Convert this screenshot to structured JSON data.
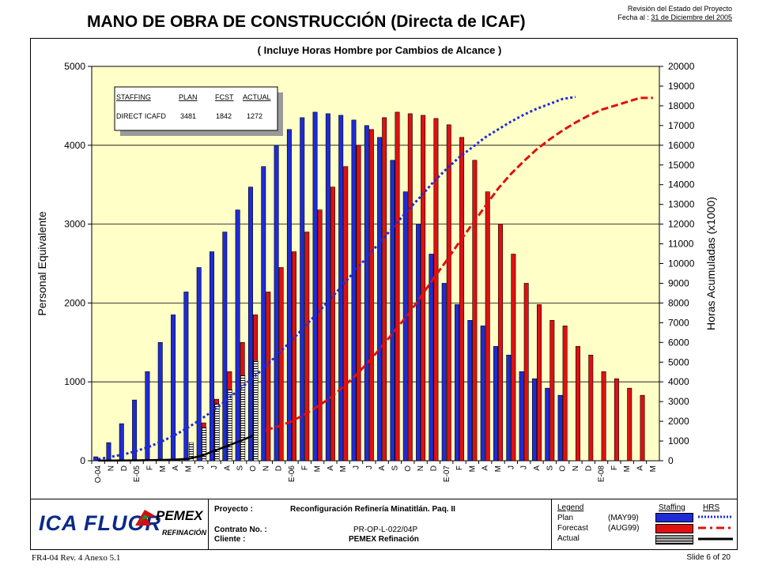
{
  "revision": {
    "line1": "Revisión del Estado del Proyecto",
    "line2_label": "Fecha al :",
    "line2_date": "31 de Diciembre del 2005"
  },
  "footer": {
    "company_logo": "ICA FLUOR",
    "client_logo": "PEMEX",
    "client_logo_sub": "REFINACIÓN",
    "proyecto_label": "Proyecto :",
    "proyecto_value": "Reconfiguración Refinería Minatitlán.  Paq. II",
    "contrato_label": "Contrato No. :",
    "contrato_value": "PR-OP-L-022/04P",
    "cliente_label": "Cliente :",
    "cliente_value": "PEMEX Refinación",
    "legend": {
      "header_legend": "Legend",
      "header_staffing": "Staffing",
      "header_hrs": "HRS",
      "rows": [
        {
          "label": "Plan",
          "code": "(MAY99)",
          "color": "#1f2bd6"
        },
        {
          "label": "Forecast",
          "code": "(AUG99)",
          "color": "#e01010"
        },
        {
          "label": "Actual",
          "code": "",
          "color": "#000000"
        }
      ]
    },
    "form_code": "FR4-04 Rev. 4  Anexo 5.1",
    "slide": "Slide 6 of 20"
  },
  "chart_data": {
    "type": "bar",
    "title": "MANO DE OBRA DE CONSTRUCCIÓN  (Directa de ICAF)",
    "subtitle": "( Incluye Horas Hombre por Cambios de Alcance )",
    "ylabel": "Personal Equivalente",
    "y2label": "Horas Acumuladas (x1000)",
    "ylim": [
      0,
      5000
    ],
    "yticks": [
      0,
      1000,
      2000,
      3000,
      4000,
      5000
    ],
    "y2lim": [
      0,
      20000
    ],
    "y2ticks": [
      0,
      1000,
      2000,
      3000,
      4000,
      5000,
      6000,
      7000,
      8000,
      9000,
      10000,
      11000,
      12000,
      13000,
      14000,
      15000,
      16000,
      17000,
      18000,
      19000,
      20000
    ],
    "categories": [
      "O-04",
      "N",
      "D",
      "E-05",
      "F",
      "M",
      "A",
      "M",
      "J",
      "J",
      "A",
      "S",
      "O",
      "N",
      "D",
      "E-06",
      "F",
      "M",
      "A",
      "M",
      "J",
      "J",
      "A",
      "S",
      "O",
      "N",
      "D",
      "E-07",
      "F",
      "M",
      "A",
      "M",
      "J",
      "J",
      "A",
      "S",
      "O",
      "N",
      "D",
      "E-08",
      "F",
      "M",
      "A",
      "M"
    ],
    "series": [
      {
        "name": "Plan",
        "kind": "bar",
        "color": "#1f2bd6",
        "values": [
          50,
          230,
          470,
          770,
          1130,
          1500,
          1850,
          2140,
          2450,
          2650,
          2900,
          3180,
          3470,
          3730,
          4000,
          4200,
          4350,
          4420,
          4400,
          4380,
          4320,
          4250,
          4100,
          3810,
          3410,
          3000,
          2620,
          2250,
          1980,
          1780,
          1710,
          1450,
          1340,
          1130,
          1040,
          920,
          830,
          null,
          null,
          null,
          null,
          null,
          null,
          null
        ]
      },
      {
        "name": "Forecast",
        "kind": "bar",
        "color": "#e01010",
        "values": [
          null,
          null,
          null,
          null,
          null,
          null,
          null,
          null,
          480,
          780,
          1130,
          1500,
          1850,
          2140,
          2450,
          2650,
          2900,
          3180,
          3470,
          3730,
          4000,
          4200,
          4350,
          4420,
          4400,
          4380,
          4340,
          4260,
          4100,
          3810,
          3410,
          3000,
          2620,
          2250,
          1980,
          1780,
          1710,
          1450,
          1340,
          1130,
          1040,
          920,
          830,
          null
        ]
      },
      {
        "name": "Actual",
        "kind": "bar",
        "color": "#ffffff",
        "pattern": "hatched",
        "values": [
          null,
          null,
          null,
          null,
          null,
          null,
          null,
          230,
          420,
          720,
          900,
          1080,
          1270,
          null,
          null,
          null,
          null,
          null,
          null,
          null,
          null,
          null,
          null,
          null,
          null,
          null,
          null,
          null,
          null,
          null,
          null,
          null,
          null,
          null,
          null,
          null,
          null,
          null,
          null,
          null,
          null,
          null,
          null,
          null
        ]
      },
      {
        "name": "HRS Plan",
        "kind": "line",
        "axis": "y2",
        "style": "dotted",
        "color": "#1f2bd6",
        "values": [
          80,
          200,
          320,
          500,
          720,
          1000,
          1320,
          1700,
          2120,
          2580,
          3100,
          3650,
          4200,
          4800,
          5450,
          6100,
          6800,
          7500,
          8200,
          8950,
          9700,
          10450,
          11200,
          11950,
          12700,
          13400,
          14150,
          14800,
          15400,
          15900,
          16400,
          16800,
          17200,
          17550,
          17850,
          18100,
          18350,
          18450,
          null,
          null,
          null,
          null,
          null,
          null
        ]
      },
      {
        "name": "HRS Forecast",
        "kind": "line",
        "axis": "y2",
        "style": "dashed",
        "color": "#e01010",
        "values": [
          null,
          null,
          null,
          null,
          null,
          null,
          null,
          null,
          null,
          null,
          null,
          null,
          null,
          1550,
          1750,
          2000,
          2350,
          2750,
          3200,
          3750,
          4350,
          5050,
          5800,
          6600,
          7400,
          8300,
          9250,
          10150,
          11100,
          12000,
          12900,
          13800,
          14550,
          15200,
          15800,
          16300,
          16750,
          17150,
          17500,
          17800,
          18000,
          18200,
          18400,
          18400
        ]
      },
      {
        "name": "HRS Actual",
        "kind": "line",
        "axis": "y2",
        "style": "solid",
        "color": "#000000",
        "values": [
          10,
          10,
          15,
          20,
          30,
          40,
          60,
          100,
          250,
          500,
          750,
          1000,
          1272,
          null,
          null,
          null,
          null,
          null,
          null,
          null,
          null,
          null,
          null,
          null,
          null,
          null,
          null,
          null,
          null,
          null,
          null,
          null,
          null,
          null,
          null,
          null,
          null,
          null,
          null,
          null,
          null,
          null,
          null,
          null
        ]
      }
    ],
    "inset_table": {
      "headers": [
        "STAFFING",
        "PLAN",
        "FCST",
        "ACTUAL"
      ],
      "rows": [
        [
          "DIRECT ICAFD",
          "3481",
          "1842",
          "1272"
        ]
      ]
    },
    "grid": true,
    "legend": "bottom-right"
  }
}
